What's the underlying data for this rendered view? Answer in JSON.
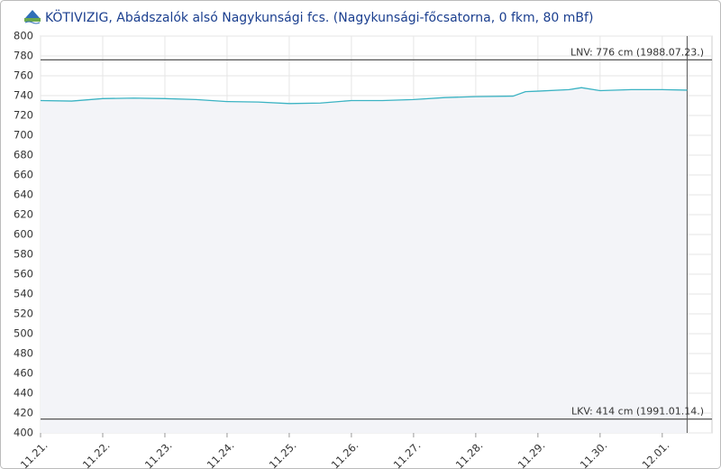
{
  "chart_data": {
    "type": "line",
    "title": "KÖTIVIZIG, Abádszalók alsó Nagykunsági fcs. (Nagykunsági-főcsatorna, 0 fkm, 80 mBf)",
    "series": [
      {
        "color": "#3bb3c3",
        "x": [
          0,
          0.5,
          1,
          1.5,
          2,
          2.5,
          3,
          3.5,
          4,
          4.5,
          5,
          5.5,
          6,
          6.5,
          7,
          7.6,
          7.8,
          8,
          8.5,
          8.7,
          9,
          9.5,
          10,
          10.4
        ],
        "values": [
          735,
          734.5,
          737,
          737.5,
          737,
          736,
          734,
          733.5,
          732,
          732.5,
          735,
          735,
          736,
          738,
          739,
          739.5,
          744,
          744.5,
          746,
          748,
          745,
          746,
          746,
          745.5
        ]
      }
    ],
    "xlim": [
      0,
      10.8
    ],
    "xticks": [
      {
        "value": 0,
        "label": "11.21."
      },
      {
        "value": 1,
        "label": "11.22."
      },
      {
        "value": 2,
        "label": "11.23."
      },
      {
        "value": 3,
        "label": "11.24."
      },
      {
        "value": 4,
        "label": "11.25."
      },
      {
        "value": 5,
        "label": "11.26."
      },
      {
        "value": 6,
        "label": "11.27."
      },
      {
        "value": 7,
        "label": "11.28."
      },
      {
        "value": 8,
        "label": "11.29."
      },
      {
        "value": 9,
        "label": "11.30."
      },
      {
        "value": 10,
        "label": "12.01."
      }
    ],
    "ylim": [
      400,
      800
    ],
    "yticks": [
      400,
      420,
      440,
      460,
      480,
      500,
      520,
      540,
      560,
      580,
      600,
      620,
      640,
      660,
      680,
      700,
      720,
      740,
      760,
      780,
      800
    ],
    "grid": true,
    "annotations": [
      {
        "label": "LNV: 776 cm (1988.07.23.)",
        "value": 776
      },
      {
        "label": "LKV: 414 cm (1991.01.14.)",
        "value": 414
      }
    ]
  }
}
